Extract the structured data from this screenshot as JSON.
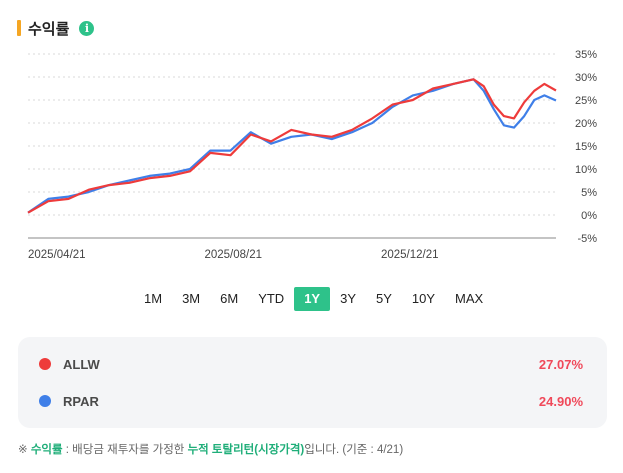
{
  "header": {
    "title": "수익률",
    "info_icon": "info-icon",
    "accent": "#f5a623"
  },
  "chart_data": {
    "type": "line",
    "ylim": [
      -5,
      35
    ],
    "y_ticks": [
      35,
      30,
      25,
      20,
      15,
      10,
      5,
      0,
      -5
    ],
    "y_tick_labels": [
      "35%",
      "30%",
      "25%",
      "20%",
      "15%",
      "10%",
      "5%",
      "0%",
      "-5%"
    ],
    "x_tick_labels": [
      "2025/04/21",
      "2025/08/21",
      "2025/12/21"
    ],
    "x_ticks": [
      "2025-04-21",
      "2025-08-21",
      "2025-12-21"
    ],
    "x_range": [
      "2025-04-21",
      "2026-04-21"
    ],
    "grid": true,
    "x": [
      "2025-04-21",
      "2025-05-05",
      "2025-05-19",
      "2025-06-02",
      "2025-06-16",
      "2025-06-30",
      "2025-07-14",
      "2025-07-28",
      "2025-08-11",
      "2025-08-25",
      "2025-09-08",
      "2025-09-22",
      "2025-10-06",
      "2025-10-20",
      "2025-11-03",
      "2025-11-17",
      "2025-12-01",
      "2025-12-15",
      "2025-12-29",
      "2026-01-12",
      "2026-01-26",
      "2026-02-09",
      "2026-02-23",
      "2026-03-02",
      "2026-03-09",
      "2026-03-16",
      "2026-03-23",
      "2026-03-30",
      "2026-04-06",
      "2026-04-13",
      "2026-04-21"
    ],
    "series": [
      {
        "name": "ALLW",
        "color": "#ee3b3b",
        "values": [
          0.5,
          3.0,
          3.5,
          5.5,
          6.5,
          7.0,
          8.0,
          8.5,
          9.5,
          13.5,
          13.0,
          17.5,
          16.0,
          18.5,
          17.5,
          17.0,
          18.5,
          21.0,
          24.0,
          25.0,
          27.5,
          28.5,
          29.5,
          28.0,
          24.0,
          21.5,
          21.0,
          24.5,
          27.0,
          28.5,
          27.07
        ]
      },
      {
        "name": "RPAR",
        "color": "#3f7fe8",
        "values": [
          0.5,
          3.5,
          4.0,
          5.0,
          6.5,
          7.5,
          8.5,
          9.0,
          10.0,
          14.0,
          14.0,
          18.0,
          15.5,
          17.0,
          17.5,
          16.5,
          18.0,
          20.0,
          23.5,
          26.0,
          27.0,
          28.5,
          29.5,
          27.0,
          23.0,
          19.5,
          19.0,
          21.5,
          25.0,
          26.0,
          24.9
        ]
      }
    ]
  },
  "periods": [
    {
      "label": "1M",
      "active": false
    },
    {
      "label": "3M",
      "active": false
    },
    {
      "label": "6M",
      "active": false
    },
    {
      "label": "YTD",
      "active": false
    },
    {
      "label": "1Y",
      "active": true
    },
    {
      "label": "3Y",
      "active": false
    },
    {
      "label": "5Y",
      "active": false
    },
    {
      "label": "10Y",
      "active": false
    },
    {
      "label": "MAX",
      "active": false
    }
  ],
  "legend": [
    {
      "name": "ALLW",
      "value": "27.07%",
      "color": "#ee3b3b"
    },
    {
      "name": "RPAR",
      "value": "24.90%",
      "color": "#3f7fe8"
    }
  ],
  "footnote": {
    "prefix": "※ ",
    "term": "수익률",
    "text1": " : 배당금 재투자를 가정한 ",
    "highlight": "누적 토탈리턴(시장가격)",
    "text2": "입니다. (기준 : 4/21)"
  }
}
